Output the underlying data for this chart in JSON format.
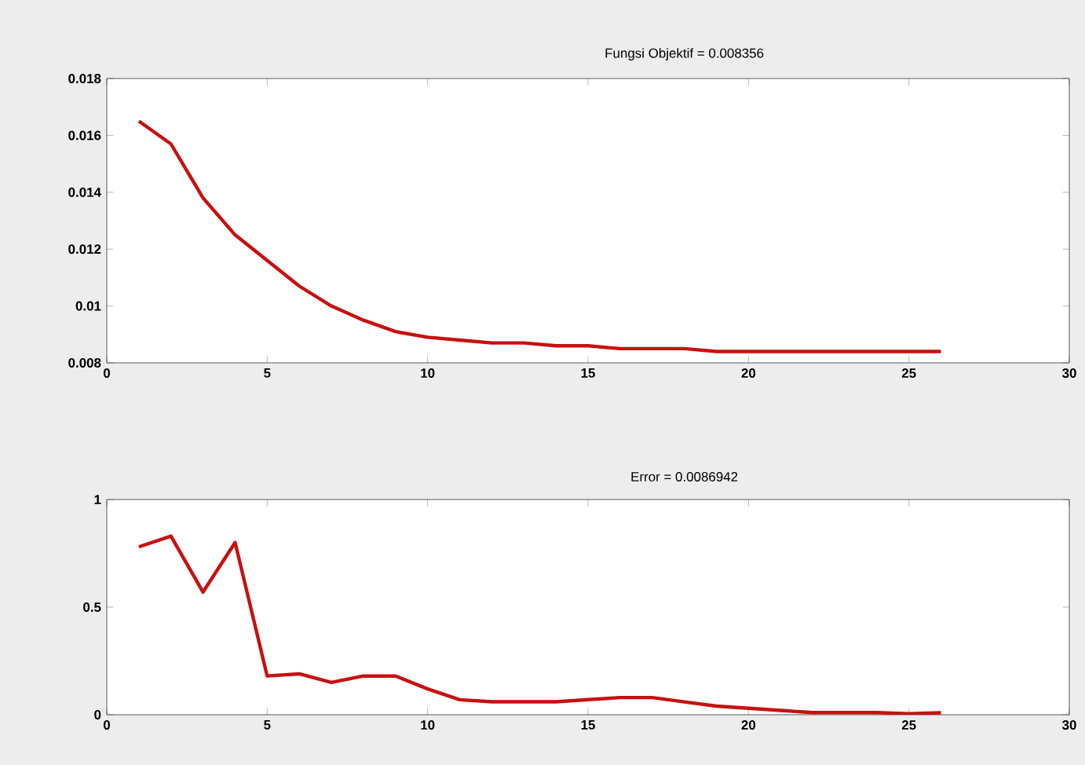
{
  "chart_data": [
    {
      "type": "line",
      "title": "Fungsi Objektif = 0.008356",
      "color": "#c81010",
      "x": [
        1,
        2,
        3,
        4,
        5,
        6,
        7,
        8,
        9,
        10,
        11,
        12,
        13,
        14,
        15,
        16,
        17,
        18,
        19,
        20,
        21,
        22,
        23,
        24,
        25,
        26
      ],
      "values": [
        0.0165,
        0.0157,
        0.0138,
        0.0125,
        0.0116,
        0.0107,
        0.01,
        0.0095,
        0.0091,
        0.0089,
        0.0088,
        0.0087,
        0.0087,
        0.0086,
        0.0086,
        0.0085,
        0.0085,
        0.0085,
        0.0084,
        0.0084,
        0.0084,
        0.0084,
        0.0084,
        0.0084,
        0.0084,
        0.0084
      ],
      "xlim": [
        0,
        30
      ],
      "ylim": [
        0.008,
        0.018
      ],
      "xticks": [
        0,
        5,
        10,
        15,
        20,
        25,
        30
      ],
      "yticks": [
        0.008,
        0.01,
        0.012,
        0.014,
        0.016,
        0.018
      ]
    },
    {
      "type": "line",
      "title": "Error = 0.0086942",
      "color": "#c81010",
      "x": [
        1,
        2,
        3,
        4,
        5,
        6,
        7,
        8,
        9,
        10,
        11,
        12,
        13,
        14,
        15,
        16,
        17,
        18,
        19,
        20,
        21,
        22,
        23,
        24,
        25,
        26
      ],
      "values": [
        0.78,
        0.83,
        0.57,
        0.8,
        0.18,
        0.19,
        0.15,
        0.18,
        0.18,
        0.12,
        0.07,
        0.06,
        0.06,
        0.06,
        0.07,
        0.08,
        0.08,
        0.06,
        0.04,
        0.03,
        0.02,
        0.01,
        0.01,
        0.01,
        0.005,
        0.009
      ],
      "xlim": [
        0,
        30
      ],
      "ylim": [
        0,
        1
      ],
      "xticks": [
        0,
        5,
        10,
        15,
        20,
        25,
        30
      ],
      "yticks": [
        0,
        0.5,
        1
      ]
    }
  ]
}
